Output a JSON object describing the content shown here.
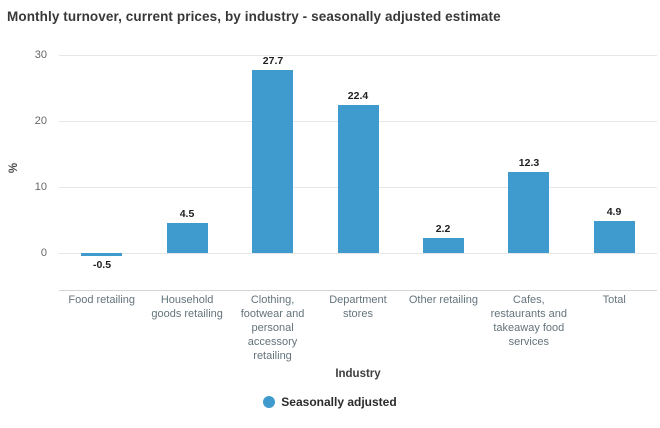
{
  "title": "Monthly turnover, current prices, by industry - seasonally adjusted estimate",
  "chart_data": {
    "type": "bar",
    "title": "Monthly turnover, current prices, by industry - seasonally adjusted estimate",
    "categories": [
      "Food retailing",
      "Household goods retailing",
      "Clothing, footwear and personal accessory retailing",
      "Department stores",
      "Other retailing",
      "Cafes, restaurants and takeaway food services",
      "Total"
    ],
    "series": [
      {
        "name": "Seasonally adjusted",
        "values": [
          -0.5,
          4.5,
          27.7,
          22.4,
          2.2,
          12.3,
          4.9
        ]
      }
    ],
    "xlabel": "Industry",
    "ylabel": "%",
    "yticks": [
      0,
      10,
      20,
      30
    ],
    "ylim": [
      -5.6,
      30
    ],
    "grid": true,
    "data_labels": true,
    "legend_position": "bottom"
  },
  "colors": {
    "bar": "#3f9acd",
    "gridline": "#e6e6e6",
    "axis_line": "#d4d4d4",
    "x_tick_label": "#64747c",
    "y_tick_label": "#666666",
    "title_text": "#383838"
  }
}
